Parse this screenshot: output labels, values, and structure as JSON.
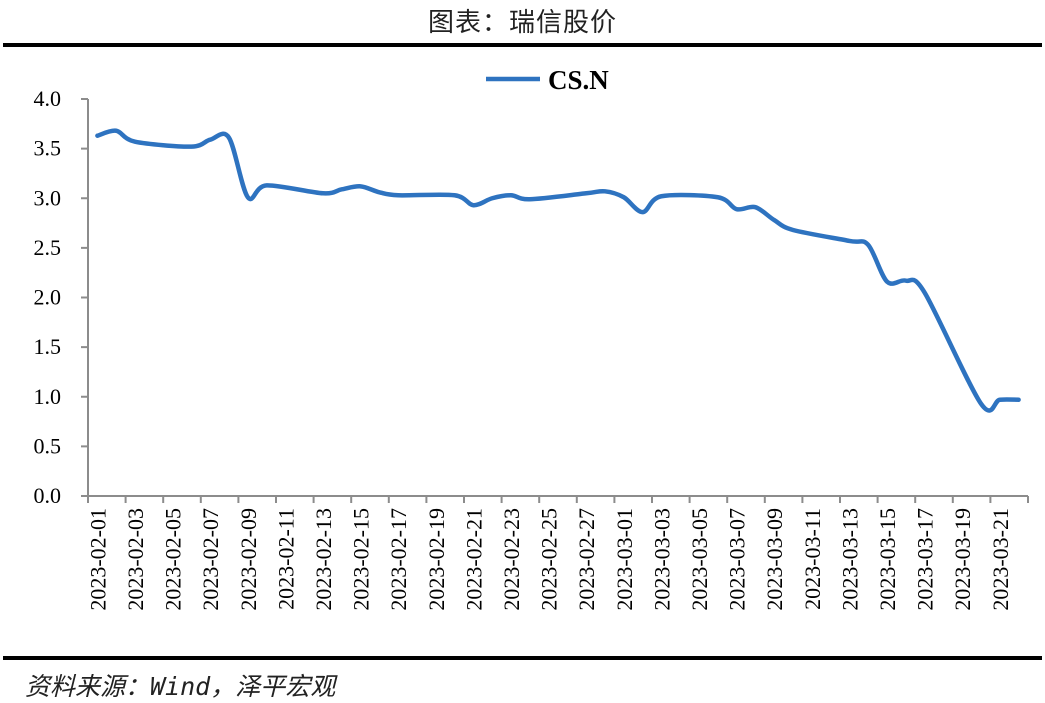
{
  "header": {
    "title": "图表：瑞信股价"
  },
  "footer": {
    "source": "资料来源：Wind，泽平宏观"
  },
  "colors": {
    "series": "#2E73C0",
    "axis": "#8C8C8C",
    "rule": "#000000"
  },
  "chart_data": {
    "type": "line",
    "title": "图表：瑞信股价",
    "xlabel": "",
    "ylabel": "",
    "ylim": [
      0,
      4
    ],
    "yticks": [
      "0.0",
      "0.5",
      "1.0",
      "1.5",
      "2.0",
      "2.5",
      "3.0",
      "3.5",
      "4.0"
    ],
    "legend": {
      "position": "top-center",
      "entries": [
        "CS.N"
      ]
    },
    "grid": false,
    "x_axis": {
      "start_date": "2023-02-01",
      "end_date": "2023-03-22",
      "category_count": 50,
      "tick_labels": [
        "2023-02-01",
        "2023-02-03",
        "2023-02-05",
        "2023-02-07",
        "2023-02-09",
        "2023-02-11",
        "2023-02-13",
        "2023-02-15",
        "2023-02-17",
        "2023-02-19",
        "2023-02-21",
        "2023-02-23",
        "2023-02-25",
        "2023-02-27",
        "2023-03-01",
        "2023-03-03",
        "2023-03-05",
        "2023-03-07",
        "2023-03-09",
        "2023-03-11",
        "2023-03-13",
        "2023-03-15",
        "2023-03-17",
        "2023-03-19",
        "2023-03-21"
      ]
    },
    "series": [
      {
        "name": "CS.N",
        "x": [
          "2023-02-01",
          "2023-02-02",
          "2023-02-03",
          "2023-02-06",
          "2023-02-07",
          "2023-02-08",
          "2023-02-09",
          "2023-02-10",
          "2023-02-13",
          "2023-02-14",
          "2023-02-15",
          "2023-02-16",
          "2023-02-17",
          "2023-02-20",
          "2023-02-21",
          "2023-02-22",
          "2023-02-23",
          "2023-02-24",
          "2023-02-27",
          "2023-02-28",
          "2023-03-01",
          "2023-03-02",
          "2023-03-03",
          "2023-03-06",
          "2023-03-07",
          "2023-03-08",
          "2023-03-09",
          "2023-03-10",
          "2023-03-13",
          "2023-03-14",
          "2023-03-15",
          "2023-03-16",
          "2023-03-17",
          "2023-03-20",
          "2023-03-21",
          "2023-03-22"
        ],
        "day_index": [
          0,
          1,
          2,
          5,
          6,
          7,
          8,
          9,
          12,
          13,
          14,
          15,
          16,
          19,
          20,
          21,
          22,
          23,
          26,
          27,
          28,
          29,
          30,
          33,
          34,
          35,
          36,
          37,
          40,
          41,
          42,
          43,
          44,
          47,
          48,
          49
        ],
        "values": [
          3.63,
          3.68,
          3.57,
          3.52,
          3.59,
          3.61,
          3.01,
          3.13,
          3.05,
          3.09,
          3.12,
          3.06,
          3.03,
          3.03,
          2.93,
          3.0,
          3.03,
          2.99,
          3.05,
          3.07,
          3.01,
          2.86,
          3.02,
          3.01,
          2.89,
          2.91,
          2.78,
          2.68,
          2.57,
          2.53,
          2.16,
          2.17,
          2.05,
          0.93,
          0.97,
          0.97
        ]
      }
    ]
  }
}
